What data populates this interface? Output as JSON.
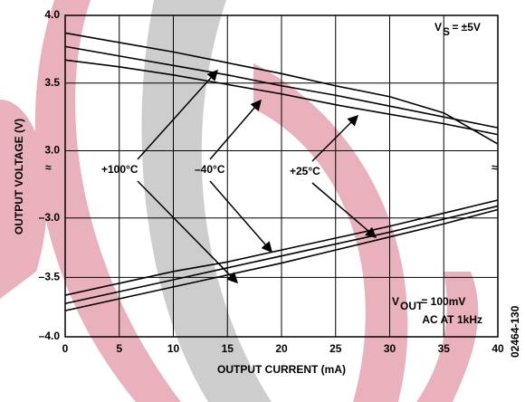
{
  "chart_data": {
    "type": "line",
    "x_label": "OUTPUT CURRENT (mA)",
    "y_label": "OUTPUT VOLTAGE (V)",
    "xlim": [
      0,
      40
    ],
    "xticks": [
      0,
      5,
      10,
      15,
      20,
      25,
      30,
      35,
      40
    ],
    "grid": true,
    "panels": [
      {
        "ylim": [
          2.87,
          4.0
        ],
        "yticks": [
          {
            "value": 3,
            "label": "3.0"
          },
          3.5,
          {
            "value": 4,
            "label": "4.0"
          }
        ],
        "series": [
          {
            "color": "#000000",
            "values": [
              3.87,
              3.8,
              3.73,
              3.65,
              3.57,
              3.48,
              3.4,
              3.28,
              3.05
            ]
          },
          {
            "color": "#000000",
            "values": [
              3.77,
              3.7,
              3.63,
              3.56,
              3.48,
              3.41,
              3.33,
              3.25,
              3.17
            ]
          },
          {
            "color": "#000000",
            "values": [
              3.67,
              3.62,
              3.56,
              3.49,
              3.42,
              3.34,
              3.27,
              3.2,
              3.12
            ]
          }
        ]
      },
      {
        "ylim": [
          -4.0,
          -2.85
        ],
        "yticks": [
          {
            "value": -4,
            "label": "–4.0"
          },
          {
            "value": -3.5,
            "label": "–3.5"
          },
          {
            "value": -3,
            "label": "–3.0"
          }
        ],
        "series": [
          {
            "color": "#000000",
            "values": [
              -3.65,
              -3.55,
              -3.45,
              -3.37,
              -3.27,
              -3.17,
              -3.07,
              -2.96,
              -2.85
            ]
          },
          {
            "color": "#000000",
            "values": [
              -3.72,
              -3.62,
              -3.52,
              -3.42,
              -3.32,
              -3.22,
              -3.12,
              -3.01,
              -2.9
            ]
          },
          {
            "color": "#000000",
            "values": [
              -3.78,
              -3.68,
              -3.58,
              -3.48,
              -3.38,
              -3.27,
              -3.16,
              -3.05,
              -2.93
            ]
          }
        ]
      }
    ],
    "annotations": {
      "hot": "+100°C",
      "cold": "–40°C",
      "room": "+25°C"
    },
    "supply": {
      "main": "V",
      "sub": "S",
      "rest": " = ±5V"
    },
    "signal": {
      "main": "V",
      "sub": "OUT",
      "rest": " = 100mV",
      "line2": "AC AT 1kHz"
    },
    "figure_id": "02464-130"
  }
}
